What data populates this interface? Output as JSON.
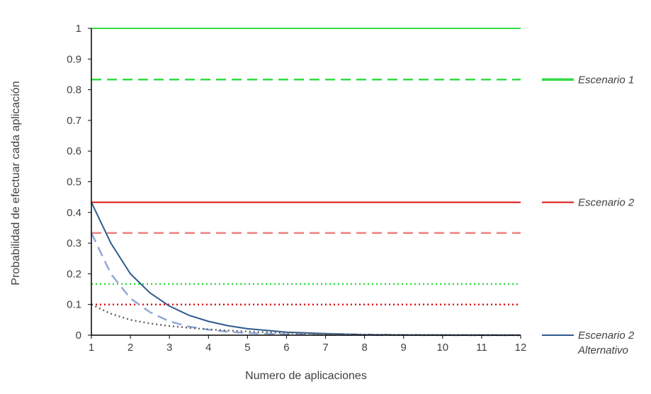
{
  "chart_data": {
    "type": "line",
    "title": "",
    "xlabel": "Numero de aplicaciones",
    "ylabel": "Probabilidad de efectuar cada aplicación",
    "xlim": [
      1,
      12
    ],
    "ylim": [
      0,
      1
    ],
    "x_ticks": [
      "1",
      "2",
      "3",
      "4",
      "5",
      "6",
      "7",
      "8",
      "9",
      "10",
      "11",
      "12"
    ],
    "y_ticks": [
      "0",
      "0.1",
      "0.2",
      "0.3",
      "0.4",
      "0.5",
      "0.6",
      "0.7",
      "0.8",
      "0.9",
      "1"
    ],
    "grid": false,
    "legend_placement": "right",
    "legend": [
      {
        "label_lines": [
          "Escenario 1"
        ],
        "color": "#33dd44",
        "style": "solid",
        "thick": true
      },
      {
        "label_lines": [
          "Escenario 2"
        ],
        "color": "#dd1111",
        "style": "solid",
        "thick": false
      },
      {
        "label_lines": [
          "Escenario 2",
          "Alternativo"
        ],
        "color": "#2e5a8c",
        "style": "solid",
        "thick": false
      }
    ],
    "series": [
      {
        "color": "#33dd44",
        "style": "solid",
        "x": [
          1,
          2,
          3,
          4,
          5,
          6,
          7,
          8,
          9,
          10,
          11,
          12
        ],
        "y": [
          1,
          1,
          1,
          1,
          1,
          1,
          1,
          1,
          1,
          1,
          1,
          1
        ]
      },
      {
        "color": "#33dd44",
        "style": "dashed",
        "x": [
          1,
          2,
          3,
          4,
          5,
          6,
          7,
          8,
          9,
          10,
          11,
          12
        ],
        "y": [
          0.833,
          0.833,
          0.833,
          0.833,
          0.833,
          0.833,
          0.833,
          0.833,
          0.833,
          0.833,
          0.833,
          0.833
        ]
      },
      {
        "color": "#33dd44",
        "style": "dotted",
        "x": [
          1,
          2,
          3,
          4,
          5,
          6,
          7,
          8,
          9,
          10,
          11,
          12
        ],
        "y": [
          0.167,
          0.167,
          0.167,
          0.167,
          0.167,
          0.167,
          0.167,
          0.167,
          0.167,
          0.167,
          0.167,
          0.167
        ]
      },
      {
        "color": "#dd1111",
        "style": "solid",
        "x": [
          1,
          2,
          3,
          4,
          5,
          6,
          7,
          8,
          9,
          10,
          11,
          12
        ],
        "y": [
          0.433,
          0.433,
          0.433,
          0.433,
          0.433,
          0.433,
          0.433,
          0.433,
          0.433,
          0.433,
          0.433,
          0.433
        ]
      },
      {
        "color": "#f08080",
        "style": "dashed",
        "x": [
          1,
          2,
          3,
          4,
          5,
          6,
          7,
          8,
          9,
          10,
          11,
          12
        ],
        "y": [
          0.333,
          0.333,
          0.333,
          0.333,
          0.333,
          0.333,
          0.333,
          0.333,
          0.333,
          0.333,
          0.333,
          0.333
        ]
      },
      {
        "color": "#dd1111",
        "style": "dotted",
        "x": [
          1,
          2,
          3,
          4,
          5,
          6,
          7,
          8,
          9,
          10,
          11,
          12
        ],
        "y": [
          0.1,
          0.1,
          0.1,
          0.1,
          0.1,
          0.1,
          0.1,
          0.1,
          0.1,
          0.1,
          0.1,
          0.1
        ]
      },
      {
        "color": "#2e5a8c",
        "style": "solid",
        "x": [
          1,
          1.5,
          2,
          2.5,
          3,
          3.5,
          4,
          4.5,
          5,
          6,
          7,
          8,
          9,
          10,
          11,
          12
        ],
        "y": [
          0.433,
          0.3,
          0.2,
          0.138,
          0.095,
          0.065,
          0.045,
          0.031,
          0.021,
          0.01,
          0.005,
          0.002,
          0.001,
          0.0005,
          0.0002,
          0.0001
        ]
      },
      {
        "color": "#8fa8d8",
        "style": "dashed",
        "x": [
          1,
          1.5,
          2,
          2.5,
          3,
          3.5,
          4,
          4.5,
          5,
          6,
          7,
          8,
          9,
          10,
          11,
          12
        ],
        "y": [
          0.333,
          0.2,
          0.12,
          0.075,
          0.045,
          0.028,
          0.018,
          0.011,
          0.007,
          0.003,
          0.001,
          0.0005,
          0.0002,
          0.0001,
          0,
          0
        ]
      },
      {
        "color": "#666666",
        "style": "dotted",
        "x": [
          1,
          1.5,
          2,
          2.5,
          3,
          3.5,
          4,
          4.5,
          5,
          6,
          7,
          8,
          9,
          10,
          11,
          12
        ],
        "y": [
          0.1,
          0.07,
          0.05,
          0.038,
          0.03,
          0.024,
          0.019,
          0.015,
          0.012,
          0.007,
          0.004,
          0.002,
          0.001,
          0.0005,
          0.0002,
          0.0001
        ]
      }
    ]
  }
}
